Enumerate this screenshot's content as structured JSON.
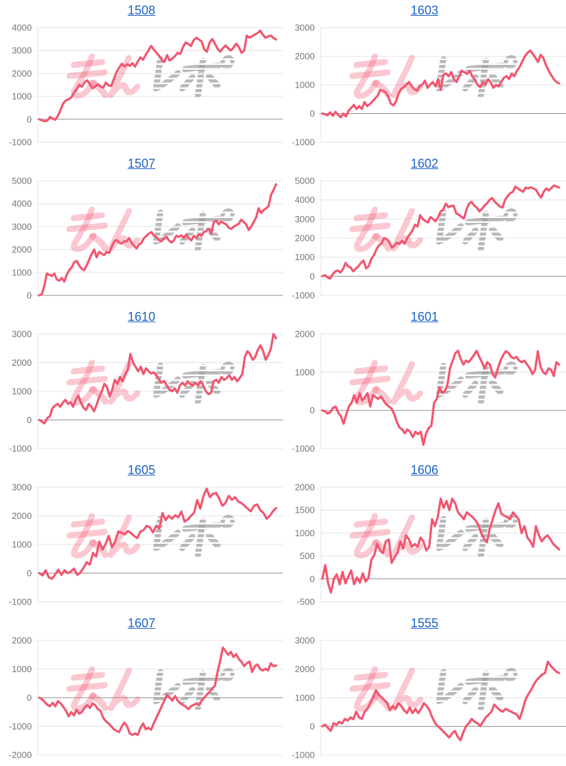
{
  "page": {
    "layout": "2x5-chart-grid"
  },
  "watermark": {
    "text": "みんレポ",
    "pink_text": "みん",
    "gray_text": "レポ"
  },
  "style": {
    "background": "#ffffff",
    "line_color": "#f2556f",
    "link_color": "#1f62c5",
    "grid_color": "#e4e4e4",
    "zero_line_color": "#909090",
    "tick_label_color": "#757575",
    "watermark_pink": "rgba(242,85,111,0.32)",
    "watermark_gray": "#9e9e9e"
  },
  "chart_data": [
    {
      "type": "line",
      "title": "1508",
      "ylim": [
        -1000,
        4000
      ],
      "ticks": [
        4000,
        3000,
        2000,
        1000,
        0,
        -1000
      ],
      "grid": true,
      "legend": "none",
      "values": [
        0,
        -50,
        -80,
        -60,
        100,
        30,
        -20,
        150,
        420,
        700,
        820,
        870,
        950,
        1150,
        1320,
        1500,
        1420,
        1620,
        1700,
        1520,
        1350,
        1430,
        1520,
        1430,
        1380,
        1600,
        1480,
        1450,
        1750,
        2050,
        2250,
        2420,
        2300,
        2400,
        2330,
        2450,
        2300,
        2520,
        2700,
        2600,
        2820,
        3000,
        3200,
        3050,
        2900,
        2780,
        2600,
        2500,
        2800,
        2560,
        2650,
        2760,
        2900,
        2850,
        3150,
        3350,
        3280,
        3200,
        3450,
        3560,
        3480,
        3400,
        3050,
        2950,
        3350,
        3500,
        3300,
        3080,
        2950,
        3100,
        3220,
        3100,
        3000,
        3120,
        3300,
        3150,
        2900,
        3000,
        3650,
        3560,
        3620,
        3700,
        3760,
        3870,
        3700,
        3550,
        3620,
        3650,
        3550,
        3480
      ]
    },
    {
      "type": "line",
      "title": "1603",
      "ylim": [
        -1000,
        3000
      ],
      "ticks": [
        3000,
        2000,
        1000,
        0,
        -1000
      ],
      "grid": true,
      "legend": "none",
      "values": [
        0,
        -30,
        -60,
        40,
        -80,
        60,
        -50,
        -130,
        0,
        -100,
        100,
        200,
        300,
        160,
        260,
        160,
        400,
        260,
        320,
        420,
        520,
        620,
        820,
        790,
        750,
        600,
        350,
        280,
        420,
        700,
        860,
        920,
        1010,
        1100,
        950,
        850,
        800,
        960,
        1010,
        1150,
        900,
        1010,
        1100,
        950,
        1200,
        820,
        1350,
        1400,
        1300,
        1450,
        1200,
        1100,
        1300,
        1500,
        1440,
        1380,
        1490,
        1300,
        1180,
        1000,
        920,
        1100,
        1000,
        1200,
        1090,
        900,
        1000,
        950,
        1100,
        1250,
        1300,
        1200,
        1400,
        1300,
        1500,
        1620,
        1820,
        2000,
        2120,
        2200,
        2080,
        1950,
        1800,
        2050,
        1940,
        1700,
        1500,
        1340,
        1200,
        1100,
        1050
      ]
    },
    {
      "type": "line",
      "title": "1507",
      "ylim": [
        0,
        5000
      ],
      "ticks": [
        5000,
        4000,
        3000,
        2000,
        1000,
        0
      ],
      "grid": true,
      "legend": "none",
      "values": [
        0,
        50,
        420,
        950,
        900,
        850,
        950,
        700,
        640,
        760,
        600,
        900,
        1100,
        1220,
        1450,
        1500,
        1300,
        1160,
        1100,
        1300,
        1560,
        1800,
        2000,
        1660,
        1900,
        1820,
        1760,
        1900,
        1850,
        2100,
        2350,
        2420,
        2300,
        2260,
        2360,
        2350,
        2500,
        2300,
        2160,
        2050,
        2220,
        2300,
        2500,
        2600,
        2700,
        2760,
        2600,
        2540,
        2400,
        2360,
        2500,
        2560,
        2400,
        2300,
        2400,
        2600,
        2560,
        2620,
        2500,
        2650,
        2500,
        2400,
        2600,
        2500,
        2660,
        2600,
        2760,
        2800,
        2900,
        2700,
        3200,
        3260,
        3100,
        3220,
        3150,
        3100,
        2950,
        2900,
        3000,
        3060,
        3120,
        3300,
        3200,
        3100,
        2850,
        3000,
        3200,
        3400,
        3800,
        3600,
        3720,
        3800,
        3900,
        4400,
        4600,
        4850
      ]
    },
    {
      "type": "line",
      "title": "1602",
      "ylim": [
        -1000,
        5000
      ],
      "ticks": [
        5000,
        4000,
        3000,
        2000,
        1000,
        0,
        -1000
      ],
      "grid": true,
      "legend": "none",
      "values": [
        0,
        60,
        -60,
        -120,
        100,
        250,
        300,
        200,
        360,
        700,
        520,
        460,
        260,
        400,
        520,
        700,
        820,
        420,
        520,
        900,
        1100,
        1400,
        1620,
        1720,
        2000,
        1950,
        1800,
        1500,
        1600,
        1760,
        1700,
        1860,
        1700,
        2000,
        2200,
        2400,
        2700,
        2600,
        3200,
        3000,
        2900,
        2820,
        3100,
        3000,
        2880,
        3100,
        3400,
        3500,
        3800,
        3620,
        3680,
        3700,
        3300,
        3220,
        3120,
        3020,
        3500,
        3800,
        3900,
        3700,
        3600,
        3400,
        3520,
        3700,
        3820,
        4000,
        4100,
        3900,
        3780,
        3650,
        3600,
        4000,
        4200,
        4350,
        4420,
        4700,
        4600,
        4500,
        4420,
        4650,
        4600,
        4660,
        4600,
        4540,
        4300,
        4120,
        4420,
        4600,
        4500,
        4620,
        4750,
        4700,
        4650
      ]
    },
    {
      "type": "line",
      "title": "1610",
      "ylim": [
        -1000,
        3000
      ],
      "ticks": [
        3000,
        2000,
        1000,
        0,
        -1000
      ],
      "grid": true,
      "legend": "none",
      "values": [
        0,
        -60,
        -120,
        60,
        120,
        400,
        500,
        560,
        460,
        600,
        700,
        560,
        620,
        460,
        700,
        850,
        600,
        420,
        350,
        560,
        460,
        300,
        520,
        800,
        1000,
        1260,
        1150,
        820,
        1050,
        1400,
        1260,
        1500,
        1350,
        1600,
        1760,
        2300,
        2000,
        1850,
        1700,
        1860,
        1600,
        1800,
        1700,
        1620,
        1660,
        1550,
        1400,
        1300,
        1360,
        1200,
        1050,
        1000,
        1100,
        950,
        1200,
        1300,
        1200,
        1350,
        1250,
        1200,
        1300,
        1200,
        1350,
        1200,
        1000,
        900,
        950,
        1350,
        1400,
        1300,
        1500,
        1400,
        1460,
        1560,
        1400,
        1500,
        1350,
        1460,
        1600,
        2200,
        2400,
        2300,
        2100,
        2200,
        2450,
        2600,
        2400,
        2100,
        2260,
        2500,
        3000,
        2850
      ]
    },
    {
      "type": "line",
      "title": "1601",
      "ylim": [
        -1000,
        2000
      ],
      "ticks": [
        2000,
        1000,
        0,
        -1000
      ],
      "grid": true,
      "legend": "none",
      "values": [
        0,
        -30,
        -80,
        -50,
        60,
        100,
        -60,
        -160,
        -350,
        -100,
        100,
        200,
        400,
        200,
        450,
        260,
        350,
        450,
        100,
        400,
        350,
        300,
        360,
        260,
        160,
        100,
        50,
        -100,
        -300,
        -450,
        -500,
        -600,
        -500,
        -560,
        -700,
        -560,
        -620,
        -560,
        -900,
        -600,
        -460,
        -400,
        200,
        300,
        600,
        460,
        500,
        660,
        1100,
        1300,
        1500,
        1560,
        1350,
        1200,
        1300,
        1260,
        1350,
        1450,
        1560,
        1400,
        1260,
        1100,
        1260,
        1200,
        950,
        860,
        1100,
        1300,
        1450,
        1550,
        1500,
        1400,
        1360,
        1400,
        1300,
        1260,
        1300,
        1200,
        1100,
        950,
        1060,
        1550,
        1150,
        1000,
        950,
        1100,
        1060,
        900,
        1260,
        1200
      ]
    },
    {
      "type": "line",
      "title": "1605",
      "ylim": [
        -1000,
        3000
      ],
      "ticks": [
        3000,
        2000,
        1000,
        0,
        -1000
      ],
      "grid": true,
      "legend": "none",
      "values": [
        0,
        -80,
        100,
        -150,
        -200,
        -50,
        120,
        -60,
        100,
        0,
        60,
        160,
        -60,
        20,
        180,
        380,
        300,
        700,
        580,
        1100,
        820,
        1020,
        1300,
        900,
        1100,
        1450,
        1420,
        1350,
        1470,
        1400,
        1300,
        1220,
        1450,
        1500,
        1650,
        1600,
        1420,
        1650,
        1550,
        2100,
        1850,
        2000,
        1900,
        2020,
        1950,
        2150,
        1800,
        1870,
        2000,
        2100,
        2550,
        2250,
        2700,
        2950,
        2650,
        2770,
        2800,
        2600,
        2350,
        2450,
        2700,
        2560,
        2650,
        2500,
        2450,
        2350,
        2250,
        2160,
        2350,
        2400,
        2200,
        2100,
        1900,
        2000,
        2160,
        2270
      ]
    },
    {
      "type": "line",
      "title": "1606",
      "ylim": [
        -500,
        2000
      ],
      "ticks": [
        2000,
        1500,
        1000,
        500,
        0,
        -500
      ],
      "grid": true,
      "legend": "none",
      "values": [
        0,
        300,
        -100,
        -300,
        0,
        100,
        -120,
        150,
        -100,
        50,
        180,
        -120,
        30,
        -80,
        120,
        -60,
        30,
        420,
        520,
        760,
        620,
        560,
        820,
        860,
        350,
        470,
        570,
        820,
        660,
        950,
        860,
        700,
        760,
        700,
        900,
        820,
        620,
        700,
        1300,
        1150,
        1350,
        1750,
        1550,
        1700,
        1500,
        1750,
        1650,
        1450,
        1380,
        1300,
        1450,
        1400,
        1350,
        1280,
        1180,
        1000,
        880,
        800,
        1100,
        1300,
        1500,
        1650,
        1420,
        1380,
        1350,
        1300,
        1450,
        1380,
        1300,
        1000,
        1150,
        900,
        820,
        700,
        1150,
        950,
        820,
        900,
        950,
        860,
        760,
        700,
        640
      ]
    },
    {
      "type": "line",
      "title": "1607",
      "ylim": [
        -2000,
        2000
      ],
      "ticks": [
        2000,
        1000,
        0,
        -1000,
        -2000
      ],
      "grid": true,
      "legend": "none",
      "values": [
        0,
        -50,
        -150,
        -250,
        -300,
        -180,
        -300,
        -120,
        -200,
        -320,
        -450,
        -650,
        -500,
        -620,
        -420,
        -560,
        -500,
        -350,
        -260,
        -360,
        -200,
        -260,
        -400,
        -460,
        -700,
        -820,
        -900,
        -1000,
        -1100,
        -1160,
        -1200,
        -1000,
        -870,
        -1000,
        -1250,
        -1300,
        -1250,
        -1300,
        -1060,
        -900,
        -1100,
        -1050,
        -1120,
        -900,
        -700,
        -500,
        -300,
        -100,
        100,
        0,
        -100,
        60,
        -100,
        -200,
        -260,
        -310,
        -400,
        -300,
        -250,
        -210,
        -260,
        -110,
        0,
        110,
        200,
        320,
        420,
        900,
        1300,
        1750,
        1620,
        1500,
        1600,
        1420,
        1520,
        1350,
        1250,
        1100,
        1200,
        1260,
        900,
        1100,
        1160,
        1000,
        950,
        1010,
        950,
        1200,
        1100,
        1120
      ]
    },
    {
      "type": "line",
      "title": "1555",
      "ylim": [
        -1000,
        3000
      ],
      "ticks": [
        3000,
        2000,
        1000,
        0,
        -1000
      ],
      "grid": true,
      "legend": "none",
      "values": [
        0,
        60,
        -60,
        -160,
        110,
        50,
        160,
        100,
        260,
        200,
        310,
        250,
        510,
        310,
        260,
        510,
        610,
        810,
        1010,
        1260,
        1110,
        1010,
        910,
        810,
        560,
        710,
        610,
        810,
        710,
        560,
        460,
        660,
        460,
        610,
        460,
        610,
        810,
        710,
        560,
        310,
        110,
        10,
        -90,
        -190,
        -290,
        -390,
        -260,
        -160,
        -360,
        -490,
        -210,
        10,
        110,
        260,
        160,
        110,
        10,
        160,
        310,
        410,
        510,
        760,
        660,
        560,
        510,
        610,
        560,
        510,
        460,
        410,
        260,
        560,
        910,
        1110,
        1260,
        1460,
        1610,
        1710,
        1810,
        1860,
        2260,
        2110,
        2010,
        1910,
        1860
      ]
    }
  ]
}
